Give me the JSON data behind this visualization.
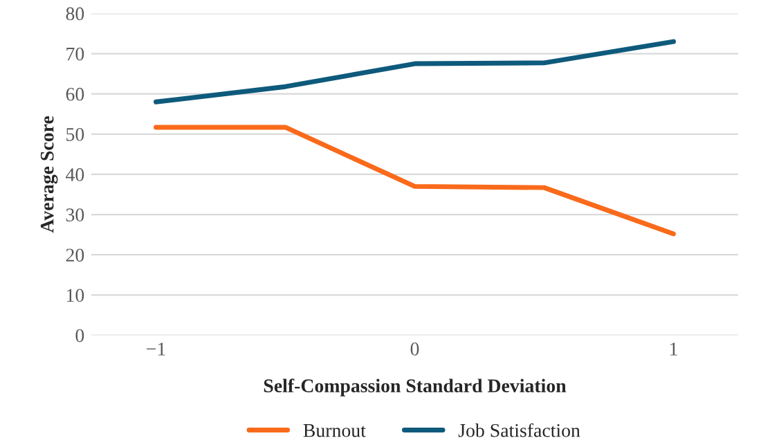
{
  "chart_data": {
    "type": "line",
    "xlabel": "Self-Compassion Standard Deviation",
    "ylabel": "Average Score",
    "x": [
      -1,
      -0.5,
      0,
      0.5,
      1
    ],
    "series": [
      {
        "name": "Burnout",
        "color": "#f96a1b",
        "values": [
          51.7,
          51.7,
          37,
          36.7,
          25.2
        ]
      },
      {
        "name": "Job Satisfaction",
        "color": "#0e5a7c",
        "values": [
          58,
          61.8,
          67.5,
          67.7,
          73
        ]
      }
    ],
    "xlim": [
      -1.25,
      1.25
    ],
    "xticks": [
      {
        "value": -1,
        "label": "−1"
      },
      0,
      1
    ],
    "ylim": [
      0,
      80
    ],
    "yticks": [
      0,
      10,
      20,
      30,
      40,
      50,
      60,
      70,
      80
    ],
    "grid": "y",
    "legend": "bottom",
    "marker": "none",
    "line_style": "solid"
  }
}
